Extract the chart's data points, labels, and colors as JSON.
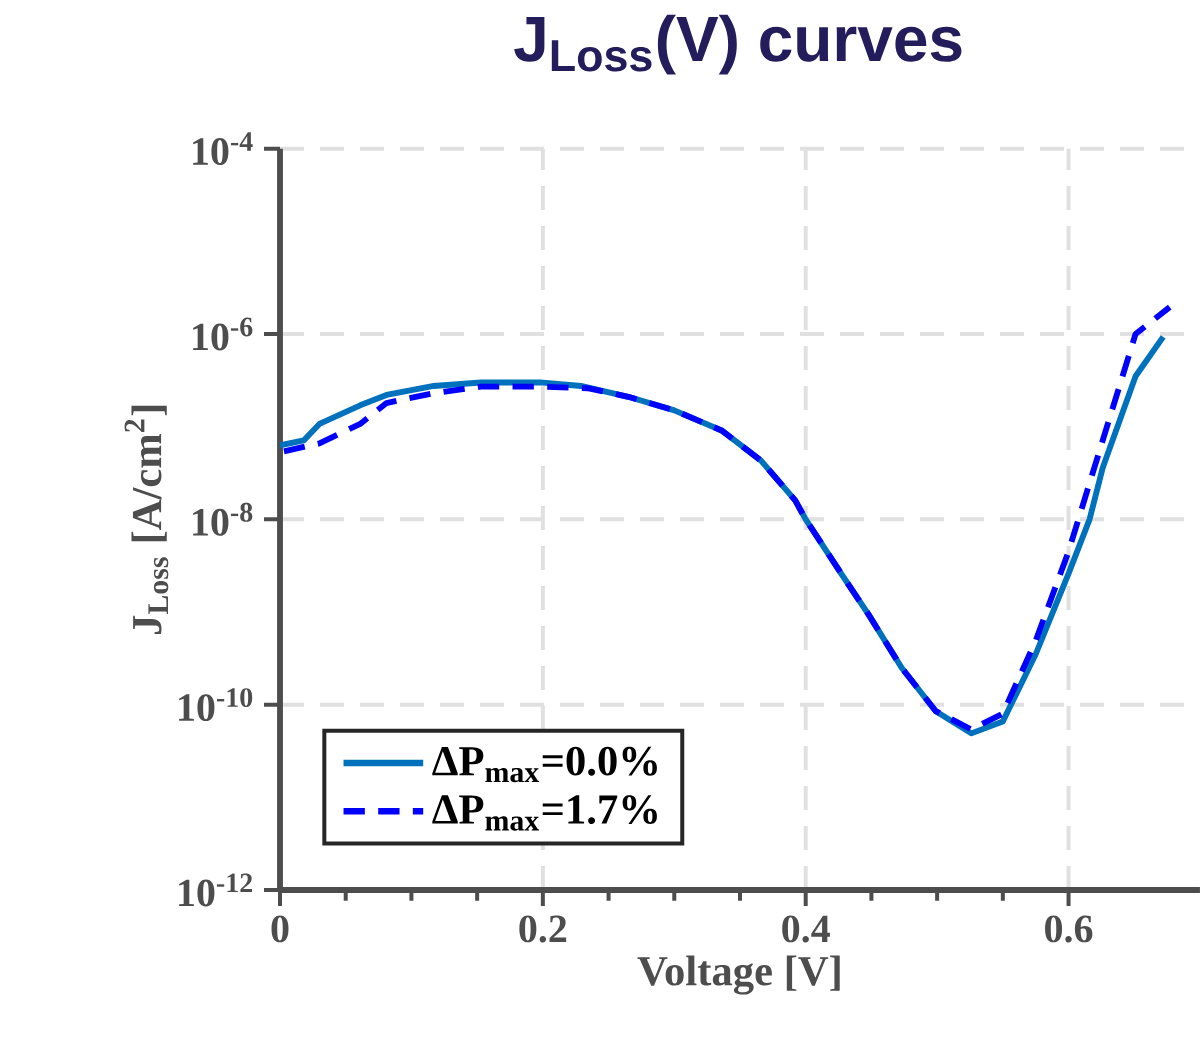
{
  "chart_data": {
    "type": "line",
    "title": "J$_{Loss}$(V) curves",
    "xlabel": "Voltage [V]",
    "ylabel": "J$_{Loss}$ [A/cm$^{2}$]",
    "xlim": [
      0,
      0.7
    ],
    "xticks": [
      0,
      0.2,
      0.4,
      0.6
    ],
    "ylim": [
      1e-12,
      0.0001
    ],
    "yticks": [
      {
        "value": 1e-12,
        "label": "10$^{-12}$"
      },
      {
        "value": 1e-10,
        "label": "10$^{-10}$"
      },
      {
        "value": 1e-08,
        "label": "10$^{-8}$"
      },
      {
        "value": 1e-06,
        "label": "10$^{-6}$"
      },
      {
        "value": 0.0001,
        "label": "10$^{-4}$"
      }
    ],
    "log": "y",
    "grid": true,
    "legend": "bottom left",
    "series": [
      {
        "name": "ΔP$_{max}$=0.0%",
        "color": "#0072bd",
        "line_style": "solid",
        "x": [
          0,
          0.018,
          0.03,
          0.061,
          0.081,
          0.117,
          0.153,
          0.198,
          0.229,
          0.265,
          0.3,
          0.336,
          0.366,
          0.392,
          0.4,
          0.427,
          0.448,
          0.473,
          0.499,
          0.526,
          0.55,
          0.575,
          0.6,
          0.616,
          0.626,
          0.651,
          0.672
        ],
        "values": [
          6.3e-08,
          7.1e-08,
          1.07e-07,
          1.7e-07,
          2.2e-07,
          2.75e-07,
          3e-07,
          3e-07,
          2.75e-07,
          2.1e-07,
          1.5e-07,
          9.1e-08,
          4.3e-08,
          1.6e-08,
          1e-08,
          2.6e-09,
          9.3e-10,
          2.5e-10,
          8.5e-11,
          4.9e-11,
          6.6e-11,
          3.5e-10,
          2.6e-09,
          1e-08,
          3.6e-08,
          3.5e-07,
          9.3e-07
        ]
      },
      {
        "name": "ΔP$_{max}$=1.7%",
        "color": "#0000ff",
        "line_style": "dashed",
        "x": [
          0.003,
          0.03,
          0.061,
          0.081,
          0.117,
          0.153,
          0.198,
          0.234,
          0.265,
          0.3,
          0.336,
          0.366,
          0.392,
          0.4,
          0.427,
          0.448,
          0.473,
          0.499,
          0.526,
          0.55,
          0.575,
          0.6,
          0.626,
          0.651,
          0.677
        ],
        "values": [
          5.4e-08,
          6.6e-08,
          1.07e-07,
          1.8e-07,
          2.3e-07,
          2.7e-07,
          2.7e-07,
          2.6e-07,
          2.1e-07,
          1.5e-07,
          9.1e-08,
          4.3e-08,
          1.6e-08,
          1e-08,
          2.6e-09,
          9.3e-10,
          2.5e-10,
          8.5e-11,
          5.4e-11,
          8e-11,
          4.9e-10,
          4.5e-09,
          7.1e-08,
          1e-06,
          1.95e-06
        ]
      }
    ]
  }
}
